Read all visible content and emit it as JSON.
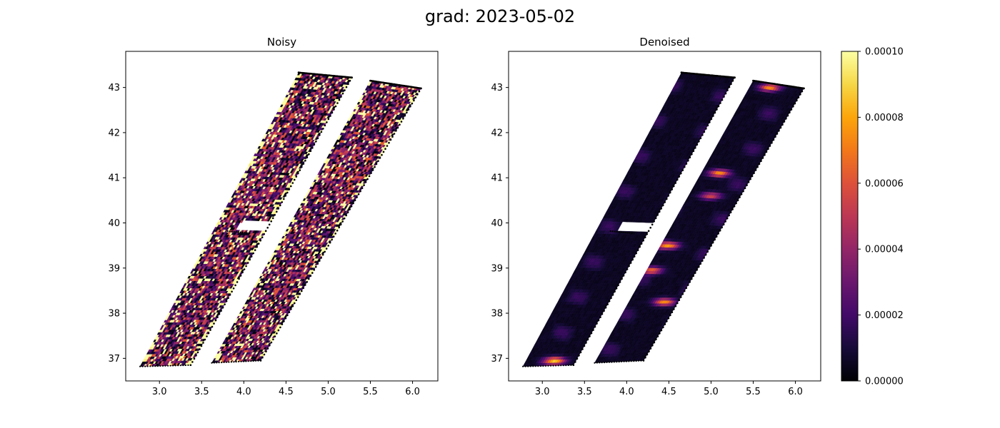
{
  "figure": {
    "suptitle": "grad: 2023-05-02"
  },
  "colors": {
    "colormap": "inferno",
    "axis": "#000000",
    "background": "#ffffff",
    "swath_edge": "#000000"
  },
  "chart_data": [
    {
      "type": "heatmap",
      "title": "Noisy",
      "xlabel": "",
      "ylabel": "",
      "xlim": [
        2.6,
        6.3
      ],
      "ylim": [
        36.5,
        43.8
      ],
      "xticks": [
        3.0,
        3.5,
        4.0,
        4.5,
        5.0,
        5.5,
        6.0
      ],
      "xtick_labels": [
        "3.0",
        "3.5",
        "4.0",
        "4.5",
        "5.0",
        "5.5",
        "6.0"
      ],
      "yticks": [
        37,
        38,
        39,
        40,
        41,
        42,
        43
      ],
      "ytick_labels": [
        "37",
        "38",
        "39",
        "40",
        "41",
        "42",
        "43"
      ],
      "grid": false,
      "color_range": [
        0.0,
        0.0001
      ],
      "field_character": "noisy speckle, values frequently saturating near 0.00010 along swath edges and scattered throughout",
      "swaths": [
        {
          "name": "left",
          "corners_lonlat": [
            [
              2.77,
              36.82
            ],
            [
              3.37,
              36.85
            ],
            [
              5.28,
              43.22
            ],
            [
              4.65,
              43.33
            ]
          ]
        },
        {
          "name": "right",
          "corners_lonlat": [
            [
              3.62,
              36.9
            ],
            [
              4.2,
              36.95
            ],
            [
              6.1,
              42.98
            ],
            [
              5.5,
              43.15
            ]
          ]
        }
      ],
      "gap": {
        "swath": "left",
        "lat_range": [
          39.82,
          40.03
        ],
        "lon_at_gap": [
          3.8,
          4.08
        ]
      }
    },
    {
      "type": "heatmap",
      "title": "Denoised",
      "xlabel": "",
      "ylabel": "",
      "xlim": [
        2.6,
        6.3
      ],
      "ylim": [
        36.5,
        43.8
      ],
      "xticks": [
        3.0,
        3.5,
        4.0,
        4.5,
        5.0,
        5.5,
        6.0
      ],
      "xtick_labels": [
        "3.0",
        "3.5",
        "4.0",
        "4.5",
        "5.0",
        "5.5",
        "6.0"
      ],
      "yticks": [
        37,
        38,
        39,
        40,
        41,
        42,
        43
      ],
      "ytick_labels": [
        "37",
        "38",
        "39",
        "40",
        "41",
        "42",
        "43"
      ],
      "grid": false,
      "color_range": [
        0.0,
        0.0001
      ],
      "field_character": "mostly near 0 with smooth filamentary purple structures; bright orange-yellow patches in the right swath around lat 38.2-39.5 and 41.1",
      "hotspots": [
        {
          "lon": 4.5,
          "lat": 39.5,
          "value": 7e-05
        },
        {
          "lon": 4.45,
          "lat": 38.25,
          "value": 7e-05
        },
        {
          "lon": 5.1,
          "lat": 41.1,
          "value": 7e-05
        },
        {
          "lon": 4.3,
          "lat": 38.95,
          "value": 6e-05
        },
        {
          "lon": 5.0,
          "lat": 40.6,
          "value": 5e-05
        },
        {
          "lon": 3.15,
          "lat": 36.95,
          "value": 8e-05
        },
        {
          "lon": 5.7,
          "lat": 43.0,
          "value": 7e-05
        }
      ],
      "swaths": [
        {
          "name": "left",
          "corners_lonlat": [
            [
              2.77,
              36.82
            ],
            [
              3.37,
              36.85
            ],
            [
              5.28,
              43.22
            ],
            [
              4.65,
              43.33
            ]
          ]
        },
        {
          "name": "right",
          "corners_lonlat": [
            [
              3.62,
              36.9
            ],
            [
              4.2,
              36.95
            ],
            [
              6.1,
              42.98
            ],
            [
              5.5,
              43.15
            ]
          ]
        }
      ],
      "gap": {
        "swath": "left",
        "lat_range": [
          39.82,
          40.03
        ],
        "lon_at_gap": [
          3.8,
          4.08
        ]
      }
    }
  ],
  "colorbar": {
    "colormap": "inferno",
    "range": [
      0.0,
      0.0001
    ],
    "ticks": [
      0.0,
      2e-05,
      4e-05,
      6e-05,
      8e-05,
      0.0001
    ],
    "tick_labels": [
      "0.00000",
      "0.00002",
      "0.00004",
      "0.00006",
      "0.00008",
      "0.00010"
    ]
  }
}
